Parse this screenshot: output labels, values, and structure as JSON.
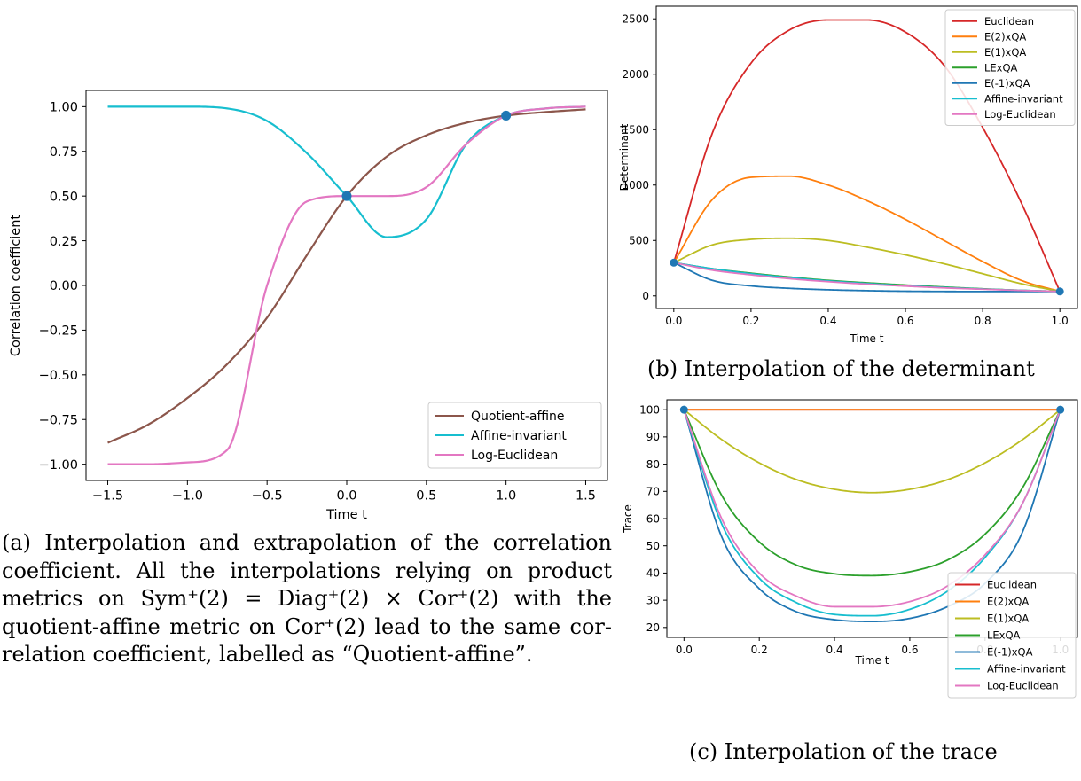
{
  "chart_data": [
    {
      "id": "a",
      "type": "line",
      "xlabel": "Time t",
      "ylabel": "Correlation coefficient",
      "xlim": [
        -1.5,
        1.5
      ],
      "ylim": [
        -1.0,
        1.0
      ],
      "xticks": [
        "−1.5",
        "−1.0",
        "−0.5",
        "0.0",
        "0.5",
        "1.0",
        "1.5"
      ],
      "yticks": [
        "−1.00",
        "−0.75",
        "−0.50",
        "−0.25",
        "0.00",
        "0.25",
        "0.50",
        "0.75",
        "1.00"
      ],
      "legend_position": "lower right",
      "x": [
        -1.5,
        -1.25,
        -1.0,
        -0.75,
        -0.5,
        -0.25,
        0.0,
        0.25,
        0.5,
        0.75,
        1.0,
        1.25,
        1.5
      ],
      "series": [
        {
          "name": "Quotient-affine",
          "color": "#8c564b",
          "values": [
            -0.88,
            -0.78,
            -0.63,
            -0.44,
            -0.18,
            0.17,
            0.5,
            0.72,
            0.84,
            0.91,
            0.95,
            0.97,
            0.985
          ]
        },
        {
          "name": "Affine-invariant",
          "color": "#17becf",
          "values": [
            1.0,
            1.0,
            1.0,
            0.99,
            0.92,
            0.74,
            0.5,
            0.27,
            0.37,
            0.79,
            0.95,
            0.99,
            1.0
          ]
        },
        {
          "name": "Log-Euclidean",
          "color": "#e377c2",
          "values": [
            -1.0,
            -1.0,
            -0.99,
            -0.92,
            0.0,
            0.47,
            0.5,
            0.5,
            0.55,
            0.79,
            0.95,
            0.99,
            1.0
          ]
        }
      ],
      "points": [
        [
          0.0,
          0.5
        ],
        [
          1.0,
          0.95
        ]
      ]
    },
    {
      "id": "b",
      "type": "line",
      "xlabel": "Time t",
      "ylabel": "Determinant",
      "xlim": [
        0,
        1
      ],
      "ylim": [
        0,
        2500
      ],
      "xticks": [
        "0.0",
        "0.2",
        "0.4",
        "0.6",
        "0.8",
        "1.0"
      ],
      "yticks": [
        "0",
        "500",
        "1000",
        "1500",
        "2000",
        "2500"
      ],
      "legend_position": "upper right",
      "x": [
        0.0,
        0.1,
        0.2,
        0.3,
        0.4,
        0.5,
        0.6,
        0.7,
        0.8,
        0.9,
        1.0
      ],
      "series": [
        {
          "name": "Euclidean",
          "color": "#d62728",
          "values": [
            300,
            1470,
            2100,
            2400,
            2490,
            2490,
            2380,
            2080,
            1520,
            840,
            40
          ]
        },
        {
          "name": "E(2)xQA",
          "color": "#ff7f0e",
          "values": [
            300,
            870,
            1070,
            1080,
            1000,
            860,
            690,
            500,
            310,
            140,
            40
          ]
        },
        {
          "name": "E(1)xQA",
          "color": "#bcbd22",
          "values": [
            300,
            460,
            510,
            520,
            500,
            440,
            370,
            290,
            200,
            110,
            40
          ]
        },
        {
          "name": "LExQA",
          "color": "#2ca02c",
          "values": [
            300,
            245,
            205,
            170,
            140,
            118,
            98,
            80,
            64,
            50,
            40
          ]
        },
        {
          "name": "E(-1)xQA",
          "color": "#1f77b4",
          "values": [
            300,
            140,
            90,
            68,
            55,
            47,
            42,
            40,
            39,
            39,
            40
          ]
        },
        {
          "name": "Affine-invariant",
          "color": "#17becf",
          "values": [
            300,
            245,
            200,
            165,
            135,
            112,
            92,
            76,
            62,
            50,
            40
          ]
        },
        {
          "name": "Log-Euclidean",
          "color": "#e377c2",
          "values": [
            300,
            232,
            190,
            155,
            128,
            106,
            88,
            72,
            60,
            49,
            40
          ]
        }
      ],
      "points": [
        [
          0.0,
          300
        ],
        [
          1.0,
          40
        ]
      ]
    },
    {
      "id": "c",
      "type": "line",
      "xlabel": "Time t",
      "ylabel": "Trace",
      "xlim": [
        0,
        1
      ],
      "ylim": [
        20,
        104
      ],
      "xticks": [
        "0.0",
        "0.2",
        "0.4",
        "0.6",
        "0.8",
        "1.0"
      ],
      "yticks": [
        "20",
        "30",
        "40",
        "50",
        "60",
        "70",
        "80",
        "90",
        "100"
      ],
      "legend_position": "lower right",
      "x": [
        0.0,
        0.1,
        0.2,
        0.3,
        0.4,
        0.5,
        0.6,
        0.7,
        0.8,
        0.9,
        1.0
      ],
      "series": [
        {
          "name": "Euclidean",
          "color": "#d62728",
          "values": [
            104,
            104,
            104,
            104,
            104,
            104,
            104,
            104,
            104,
            104,
            104
          ]
        },
        {
          "name": "E(2)xQA",
          "color": "#ff7f0e",
          "values": [
            104,
            104,
            104,
            104,
            104,
            104,
            104,
            104,
            104,
            104,
            104
          ]
        },
        {
          "name": "E(1)xQA",
          "color": "#bcbd22",
          "values": [
            104,
            92.5,
            83.5,
            77,
            73.3,
            72,
            73.3,
            77,
            83.5,
            92.5,
            104
          ]
        },
        {
          "name": "LExQA",
          "color": "#2ca02c",
          "values": [
            104,
            71,
            53,
            44,
            40.7,
            40,
            41.5,
            46,
            56,
            74,
            104
          ]
        },
        {
          "name": "E(-1)xQA",
          "color": "#1f77b4",
          "values": [
            104,
            55,
            35,
            26,
            23,
            22.3,
            23.5,
            28,
            37,
            57,
            104
          ]
        },
        {
          "name": "Affine-invariant",
          "color": "#17becf",
          "values": [
            104,
            60,
            39,
            29.5,
            25,
            24.5,
            27,
            34,
            47,
            68,
            104
          ]
        },
        {
          "name": "Log-Euclidean",
          "color": "#e377c2",
          "values": [
            104,
            62,
            41,
            32,
            28,
            28,
            30,
            36,
            48,
            68,
            104
          ]
        }
      ],
      "points": [
        [
          0.0,
          104
        ],
        [
          1.0,
          104
        ]
      ]
    }
  ],
  "captions": {
    "a": [
      "(a) Interpolation and extrapolation of the correlation",
      "coefficient.  All the interpolations relying on product",
      "metrics on Sym⁺(2) = Diag⁺(2) × Cor⁺(2) with the",
      "quotient-affine metric on Cor⁺(2) lead to the same cor-",
      "relation coefficient, labelled as “Quotient-affine”."
    ],
    "b": "(b) Interpolation of the determinant",
    "c": "(c) Interpolation of the trace"
  }
}
